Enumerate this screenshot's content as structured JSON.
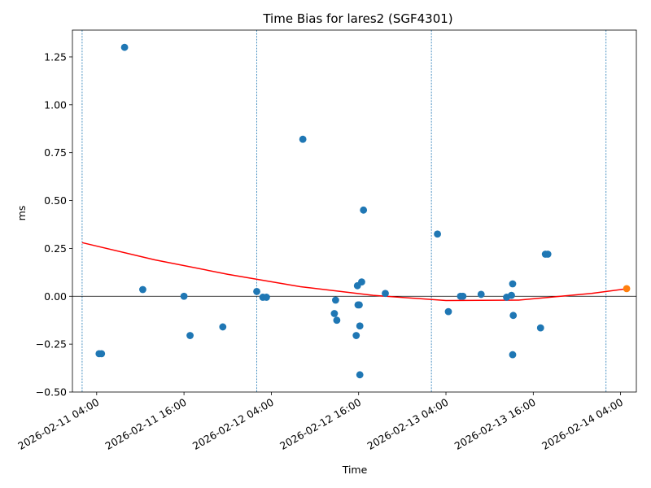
{
  "chart_data": {
    "type": "scatter",
    "title": "Time Bias for lares2 (SGF4301)",
    "xlabel": "Time",
    "ylabel": "ms",
    "x_axis": "datetime",
    "xlim": [
      "2026-02-11T00:40",
      "2026-02-14T06:10"
    ],
    "ylim": [
      -0.5,
      1.39
    ],
    "x_ticks": [
      "2026-02-11T04:00",
      "2026-02-11T16:00",
      "2026-02-12T04:00",
      "2026-02-12T16:00",
      "2026-02-13T04:00",
      "2026-02-13T16:00",
      "2026-02-14T04:00"
    ],
    "x_tick_labels": [
      "2026-02-11 04:00",
      "2026-02-11 16:00",
      "2026-02-12 04:00",
      "2026-02-12 16:00",
      "2026-02-13 04:00",
      "2026-02-13 16:00",
      "2026-02-14 04:00"
    ],
    "y_ticks": [
      -0.5,
      -0.25,
      0.0,
      0.25,
      0.5,
      0.75,
      1.0,
      1.25
    ],
    "y_tick_labels": [
      "−0.50",
      "−0.25",
      "0.00",
      "0.25",
      "0.50",
      "0.75",
      "1.00",
      "1.25"
    ],
    "grid": false,
    "zero_line": true,
    "vertical_guides": [
      "2026-02-11T02:00",
      "2026-02-12T02:00",
      "2026-02-13T02:00",
      "2026-02-14T02:00"
    ],
    "fit_curve": {
      "color": "#ff0000",
      "x": [
        "2026-02-11T02:00",
        "2026-02-11T12:00",
        "2026-02-11T22:00",
        "2026-02-12T08:00",
        "2026-02-12T18:00",
        "2026-02-13T04:00",
        "2026-02-13T14:00",
        "2026-02-14T00:00",
        "2026-02-14T05:00"
      ],
      "y": [
        0.28,
        0.19,
        0.115,
        0.05,
        0.005,
        -0.022,
        -0.02,
        0.015,
        0.04
      ]
    },
    "series": [
      {
        "color": "#1f77b4",
        "points": [
          [
            "2026-02-11T04:20",
            -0.3
          ],
          [
            "2026-02-11T04:40",
            -0.3
          ],
          [
            "2026-02-11T07:50",
            1.3
          ],
          [
            "2026-02-11T10:20",
            0.035
          ],
          [
            "2026-02-11T16:00",
            0.0
          ],
          [
            "2026-02-11T16:50",
            -0.205
          ],
          [
            "2026-02-11T21:20",
            -0.16
          ],
          [
            "2026-02-12T02:00",
            0.025
          ],
          [
            "2026-02-12T02:50",
            -0.005
          ],
          [
            "2026-02-12T03:20",
            -0.005
          ],
          [
            "2026-02-12T08:20",
            0.82
          ],
          [
            "2026-02-12T12:40",
            -0.09
          ],
          [
            "2026-02-12T12:50",
            -0.02
          ],
          [
            "2026-02-12T13:00",
            -0.125
          ],
          [
            "2026-02-12T15:40",
            -0.205
          ],
          [
            "2026-02-12T15:50",
            0.055
          ],
          [
            "2026-02-12T15:55",
            -0.045
          ],
          [
            "2026-02-12T16:05",
            -0.045
          ],
          [
            "2026-02-12T16:10",
            -0.155
          ],
          [
            "2026-02-12T16:10",
            -0.41
          ],
          [
            "2026-02-12T16:25",
            0.075
          ],
          [
            "2026-02-12T16:40",
            0.45
          ],
          [
            "2026-02-12T19:40",
            0.015
          ],
          [
            "2026-02-13T02:50",
            0.325
          ],
          [
            "2026-02-13T04:20",
            -0.08
          ],
          [
            "2026-02-13T06:00",
            0.0
          ],
          [
            "2026-02-13T06:20",
            0.0
          ],
          [
            "2026-02-13T08:50",
            0.01
          ],
          [
            "2026-02-13T12:20",
            -0.005
          ],
          [
            "2026-02-13T13:00",
            0.005
          ],
          [
            "2026-02-13T13:10",
            0.065
          ],
          [
            "2026-02-13T13:10",
            -0.305
          ],
          [
            "2026-02-13T13:15",
            -0.1
          ],
          [
            "2026-02-13T17:00",
            -0.165
          ],
          [
            "2026-02-13T17:40",
            0.22
          ],
          [
            "2026-02-13T18:00",
            0.22
          ]
        ]
      },
      {
        "color": "#ff7f0e",
        "points": [
          [
            "2026-02-14T04:50",
            0.04
          ]
        ]
      }
    ]
  }
}
